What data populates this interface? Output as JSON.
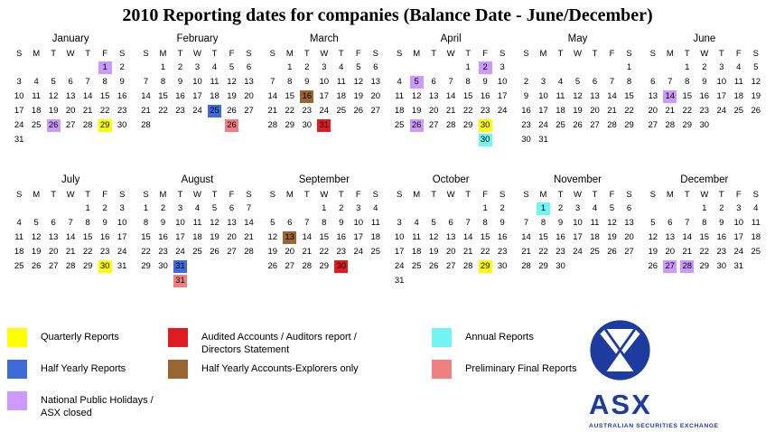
{
  "title": "2010 Reporting dates for companies (Balance Date - June/December)",
  "day_headers": [
    "S",
    "M",
    "T",
    "W",
    "T",
    "F",
    "S"
  ],
  "colors": {
    "quarterly": "#ffff00",
    "audited": "#e11b22",
    "half_yearly": "#3f6bd9",
    "explorers": "#996633",
    "annual": "#72f5f2",
    "preliminary": "#f08080",
    "holiday": "#cc99ff",
    "logo_blue": "#1e3ca0"
  },
  "months": [
    {
      "name": "January",
      "first_weekday": 5,
      "days": 31,
      "highlights": {
        "1": "holiday",
        "26": "holiday",
        "29": "quarterly"
      }
    },
    {
      "name": "February",
      "first_weekday": 1,
      "days": 28,
      "highlights": {
        "25": "half_yearly"
      },
      "extras": [
        {
          "day": 26,
          "color": "preliminary"
        }
      ]
    },
    {
      "name": "March",
      "first_weekday": 1,
      "days": 31,
      "highlights": {
        "16": "explorers",
        "31": "audited"
      }
    },
    {
      "name": "April",
      "first_weekday": 4,
      "days": 30,
      "highlights": {
        "2": "holiday",
        "5": "holiday",
        "26": "holiday",
        "30": "quarterly"
      },
      "extras": [
        {
          "day": 30,
          "color": "annual"
        }
      ]
    },
    {
      "name": "May",
      "first_weekday": 6,
      "days": 31,
      "highlights": {}
    },
    {
      "name": "June",
      "first_weekday": 2,
      "days": 30,
      "highlights": {
        "14": "holiday"
      }
    },
    {
      "name": "July",
      "first_weekday": 4,
      "days": 31,
      "highlights": {
        "30": "quarterly"
      }
    },
    {
      "name": "August",
      "first_weekday": 0,
      "days": 31,
      "highlights": {
        "31": "half_yearly"
      },
      "extras": [
        {
          "day": 31,
          "color": "preliminary"
        }
      ]
    },
    {
      "name": "September",
      "first_weekday": 3,
      "days": 30,
      "highlights": {
        "13": "explorers",
        "30": "audited"
      }
    },
    {
      "name": "October",
      "first_weekday": 5,
      "days": 31,
      "highlights": {
        "29": "quarterly"
      }
    },
    {
      "name": "November",
      "first_weekday": 1,
      "days": 30,
      "highlights": {
        "1": "annual"
      }
    },
    {
      "name": "December",
      "first_weekday": 3,
      "days": 31,
      "highlights": {
        "27": "holiday",
        "28": "holiday"
      }
    }
  ],
  "legend": {
    "columns": [
      [
        {
          "color": "quarterly",
          "label": "Quarterly Reports"
        },
        {
          "color": "half_yearly",
          "label": "Half Yearly Reports"
        },
        {
          "color": "holiday",
          "label": "National Public Holidays / ASX closed"
        }
      ],
      [
        {
          "color": "audited",
          "label": "Audited Accounts / Auditors report /\nDirectors Statement"
        },
        {
          "color": "explorers",
          "label": "Half Yearly Accounts-Explorers only"
        }
      ],
      [
        {
          "color": "annual",
          "label": "Annual Reports"
        },
        {
          "color": "preliminary",
          "label": "Preliminary Final Reports"
        }
      ]
    ]
  },
  "logo": {
    "text": "ASX",
    "subtext": "AUSTRALIAN SECURITIES EXCHANGE"
  }
}
